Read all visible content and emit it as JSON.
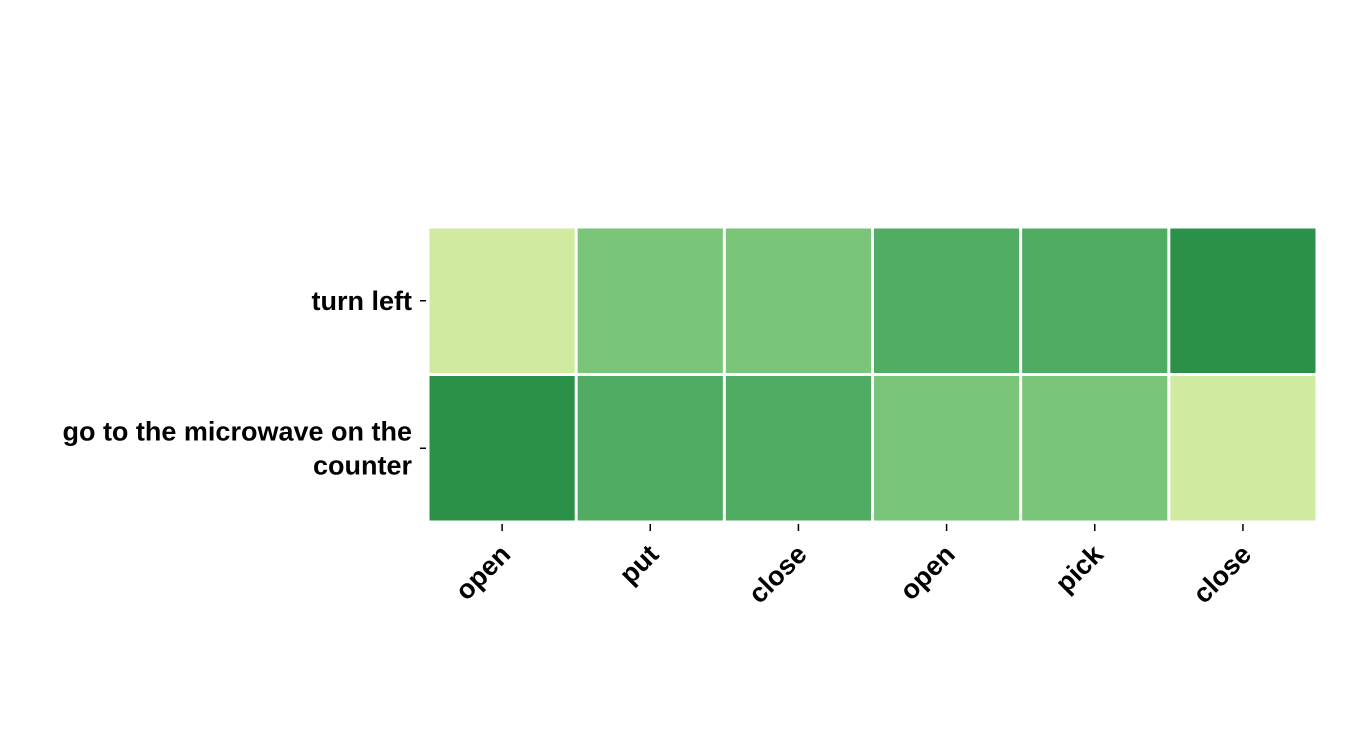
{
  "chart_data": {
    "type": "heatmap",
    "rows": [
      "turn left",
      "go to the microwave on the counter"
    ],
    "columns": [
      "open",
      "put",
      "close",
      "open",
      "pick",
      "close"
    ],
    "values": [
      [
        0.0,
        0.5,
        0.5,
        0.75,
        0.77,
        1.0
      ],
      [
        1.0,
        0.77,
        0.77,
        0.5,
        0.5,
        0.0
      ]
    ],
    "colorscale": [
      "#d0eba0",
      "#97d387",
      "#5db76c",
      "#2b9048"
    ],
    "title": "",
    "xlabel": "",
    "ylabel": "",
    "grid": false
  }
}
